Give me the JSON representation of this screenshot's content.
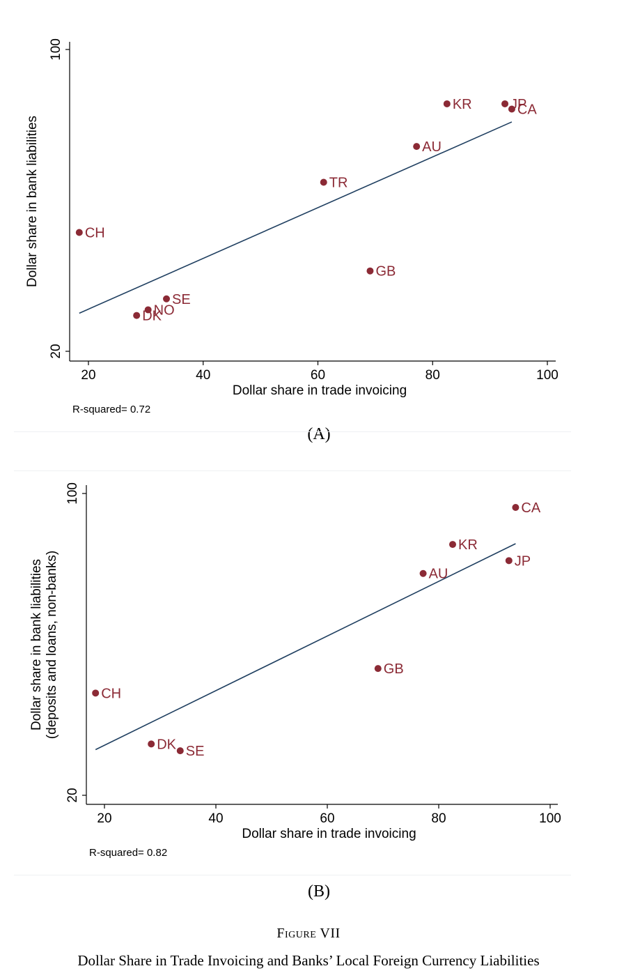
{
  "chart_data": [
    {
      "panel_label": "(A)",
      "type": "scatter",
      "xlabel": "Dollar share in trade invoicing",
      "ylabel": [
        "Dollar share in bank liabilities"
      ],
      "xlim": [
        16.5,
        102
      ],
      "ylim": [
        18,
        101.5
      ],
      "xticks": [
        20,
        40,
        60,
        80,
        100
      ],
      "yticks": [
        20,
        100
      ],
      "r_squared": "R-squared= 0.72",
      "points": [
        {
          "label": "CH",
          "x": 18.4,
          "y": 51.5
        },
        {
          "label": "DK",
          "x": 28.4,
          "y": 29.5
        },
        {
          "label": "NO",
          "x": 30.4,
          "y": 31.0
        },
        {
          "label": "SE",
          "x": 33.6,
          "y": 33.9
        },
        {
          "label": "TR",
          "x": 61.0,
          "y": 64.8
        },
        {
          "label": "GB",
          "x": 69.1,
          "y": 41.3
        },
        {
          "label": "AU",
          "x": 77.2,
          "y": 74.3
        },
        {
          "label": "KR",
          "x": 82.5,
          "y": 85.6
        },
        {
          "label": "JP",
          "x": 92.6,
          "y": 85.6
        },
        {
          "label": "CA",
          "x": 93.8,
          "y": 84.2
        }
      ],
      "fit_line": {
        "x": [
          18.4,
          93.8
        ],
        "y": [
          30.1,
          80.8
        ]
      }
    },
    {
      "panel_label": "(B)",
      "type": "scatter",
      "xlabel": "Dollar share in trade invoicing",
      "ylabel": [
        "Dollar share in bank liabilities",
        "(deposits and loans, non-banks)"
      ],
      "xlim": [
        16.5,
        102
      ],
      "ylim": [
        18,
        101.5
      ],
      "xticks": [
        20,
        40,
        60,
        80,
        100
      ],
      "yticks": [
        20,
        100
      ],
      "r_squared": "R-squared= 0.82",
      "points": [
        {
          "label": "CH",
          "x": 18.4,
          "y": 47.1
        },
        {
          "label": "DK",
          "x": 28.4,
          "y": 33.6
        },
        {
          "label": "SE",
          "x": 33.6,
          "y": 31.8
        },
        {
          "label": "GB",
          "x": 69.1,
          "y": 53.6
        },
        {
          "label": "AU",
          "x": 77.2,
          "y": 78.8
        },
        {
          "label": "KR",
          "x": 82.5,
          "y": 86.5
        },
        {
          "label": "JP",
          "x": 92.6,
          "y": 82.2
        },
        {
          "label": "CA",
          "x": 93.8,
          "y": 96.3
        }
      ],
      "fit_line": {
        "x": [
          18.4,
          93.8
        ],
        "y": [
          32.1,
          86.7
        ]
      }
    }
  ],
  "figure": {
    "number": "Figure VII",
    "caption": "Dollar Share in Trade Invoicing and Banks’ Local Foreign Currency Liabilities"
  },
  "colors": {
    "point": "#8b2a35",
    "fit_line": "#1f3f60",
    "axis": "#000000"
  }
}
